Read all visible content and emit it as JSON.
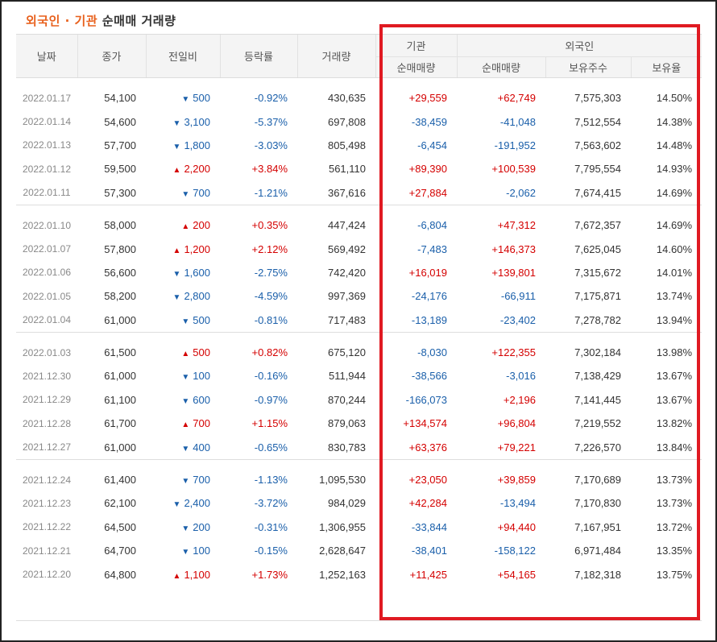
{
  "title": {
    "part1": "외국인 · 기관",
    "part2": " 순매매 거래량"
  },
  "headers": {
    "date": "날짜",
    "close": "종가",
    "diff": "전일비",
    "rate": "등락률",
    "volume": "거래량",
    "institution": "기관",
    "foreign": "외국인",
    "inst_net": "순매매량",
    "foreign_net": "순매매량",
    "foreign_holdings": "보유주수",
    "foreign_ratio": "보유율"
  },
  "colors": {
    "up": "#d40000",
    "down": "#1a5faa",
    "highlight_box": "#e01a22",
    "title_accent": "#e8601c"
  },
  "groups": [
    [
      {
        "date": "2022.01.17",
        "close": "54,100",
        "dir": "down",
        "diff": "500",
        "rate": "-0.92%",
        "volume": "430,635",
        "inst": "+29,559",
        "fnet": "+62,749",
        "hold": "7,575,303",
        "ratio": "14.50%"
      },
      {
        "date": "2022.01.14",
        "close": "54,600",
        "dir": "down",
        "diff": "3,100",
        "rate": "-5.37%",
        "volume": "697,808",
        "inst": "-38,459",
        "fnet": "-41,048",
        "hold": "7,512,554",
        "ratio": "14.38%"
      },
      {
        "date": "2022.01.13",
        "close": "57,700",
        "dir": "down",
        "diff": "1,800",
        "rate": "-3.03%",
        "volume": "805,498",
        "inst": "-6,454",
        "fnet": "-191,952",
        "hold": "7,563,602",
        "ratio": "14.48%"
      },
      {
        "date": "2022.01.12",
        "close": "59,500",
        "dir": "up",
        "diff": "2,200",
        "rate": "+3.84%",
        "volume": "561,110",
        "inst": "+89,390",
        "fnet": "+100,539",
        "hold": "7,795,554",
        "ratio": "14.93%"
      },
      {
        "date": "2022.01.11",
        "close": "57,300",
        "dir": "down",
        "diff": "700",
        "rate": "-1.21%",
        "volume": "367,616",
        "inst": "+27,884",
        "fnet": "-2,062",
        "hold": "7,674,415",
        "ratio": "14.69%"
      }
    ],
    [
      {
        "date": "2022.01.10",
        "close": "58,000",
        "dir": "up",
        "diff": "200",
        "rate": "+0.35%",
        "volume": "447,424",
        "inst": "-6,804",
        "fnet": "+47,312",
        "hold": "7,672,357",
        "ratio": "14.69%"
      },
      {
        "date": "2022.01.07",
        "close": "57,800",
        "dir": "up",
        "diff": "1,200",
        "rate": "+2.12%",
        "volume": "569,492",
        "inst": "-7,483",
        "fnet": "+146,373",
        "hold": "7,625,045",
        "ratio": "14.60%"
      },
      {
        "date": "2022.01.06",
        "close": "56,600",
        "dir": "down",
        "diff": "1,600",
        "rate": "-2.75%",
        "volume": "742,420",
        "inst": "+16,019",
        "fnet": "+139,801",
        "hold": "7,315,672",
        "ratio": "14.01%"
      },
      {
        "date": "2022.01.05",
        "close": "58,200",
        "dir": "down",
        "diff": "2,800",
        "rate": "-4.59%",
        "volume": "997,369",
        "inst": "-24,176",
        "fnet": "-66,911",
        "hold": "7,175,871",
        "ratio": "13.74%"
      },
      {
        "date": "2022.01.04",
        "close": "61,000",
        "dir": "down",
        "diff": "500",
        "rate": "-0.81%",
        "volume": "717,483",
        "inst": "-13,189",
        "fnet": "-23,402",
        "hold": "7,278,782",
        "ratio": "13.94%"
      }
    ],
    [
      {
        "date": "2022.01.03",
        "close": "61,500",
        "dir": "up",
        "diff": "500",
        "rate": "+0.82%",
        "volume": "675,120",
        "inst": "-8,030",
        "fnet": "+122,355",
        "hold": "7,302,184",
        "ratio": "13.98%"
      },
      {
        "date": "2021.12.30",
        "close": "61,000",
        "dir": "down",
        "diff": "100",
        "rate": "-0.16%",
        "volume": "511,944",
        "inst": "-38,566",
        "fnet": "-3,016",
        "hold": "7,138,429",
        "ratio": "13.67%"
      },
      {
        "date": "2021.12.29",
        "close": "61,100",
        "dir": "down",
        "diff": "600",
        "rate": "-0.97%",
        "volume": "870,244",
        "inst": "-166,073",
        "fnet": "+2,196",
        "hold": "7,141,445",
        "ratio": "13.67%"
      },
      {
        "date": "2021.12.28",
        "close": "61,700",
        "dir": "up",
        "diff": "700",
        "rate": "+1.15%",
        "volume": "879,063",
        "inst": "+134,574",
        "fnet": "+96,804",
        "hold": "7,219,552",
        "ratio": "13.82%"
      },
      {
        "date": "2021.12.27",
        "close": "61,000",
        "dir": "down",
        "diff": "400",
        "rate": "-0.65%",
        "volume": "830,783",
        "inst": "+63,376",
        "fnet": "+79,221",
        "hold": "7,226,570",
        "ratio": "13.84%"
      }
    ],
    [
      {
        "date": "2021.12.24",
        "close": "61,400",
        "dir": "down",
        "diff": "700",
        "rate": "-1.13%",
        "volume": "1,095,530",
        "inst": "+23,050",
        "fnet": "+39,859",
        "hold": "7,170,689",
        "ratio": "13.73%"
      },
      {
        "date": "2021.12.23",
        "close": "62,100",
        "dir": "down",
        "diff": "2,400",
        "rate": "-3.72%",
        "volume": "984,029",
        "inst": "+42,284",
        "fnet": "-13,494",
        "hold": "7,170,830",
        "ratio": "13.73%"
      },
      {
        "date": "2021.12.22",
        "close": "64,500",
        "dir": "down",
        "diff": "200",
        "rate": "-0.31%",
        "volume": "1,306,955",
        "inst": "-33,844",
        "fnet": "+94,440",
        "hold": "7,167,951",
        "ratio": "13.72%"
      },
      {
        "date": "2021.12.21",
        "close": "64,700",
        "dir": "down",
        "diff": "100",
        "rate": "-0.15%",
        "volume": "2,628,647",
        "inst": "-38,401",
        "fnet": "-158,122",
        "hold": "6,971,484",
        "ratio": "13.35%"
      },
      {
        "date": "2021.12.20",
        "close": "64,800",
        "dir": "up",
        "diff": "1,100",
        "rate": "+1.73%",
        "volume": "1,252,163",
        "inst": "+11,425",
        "fnet": "+54,165",
        "hold": "7,182,318",
        "ratio": "13.75%"
      }
    ]
  ]
}
